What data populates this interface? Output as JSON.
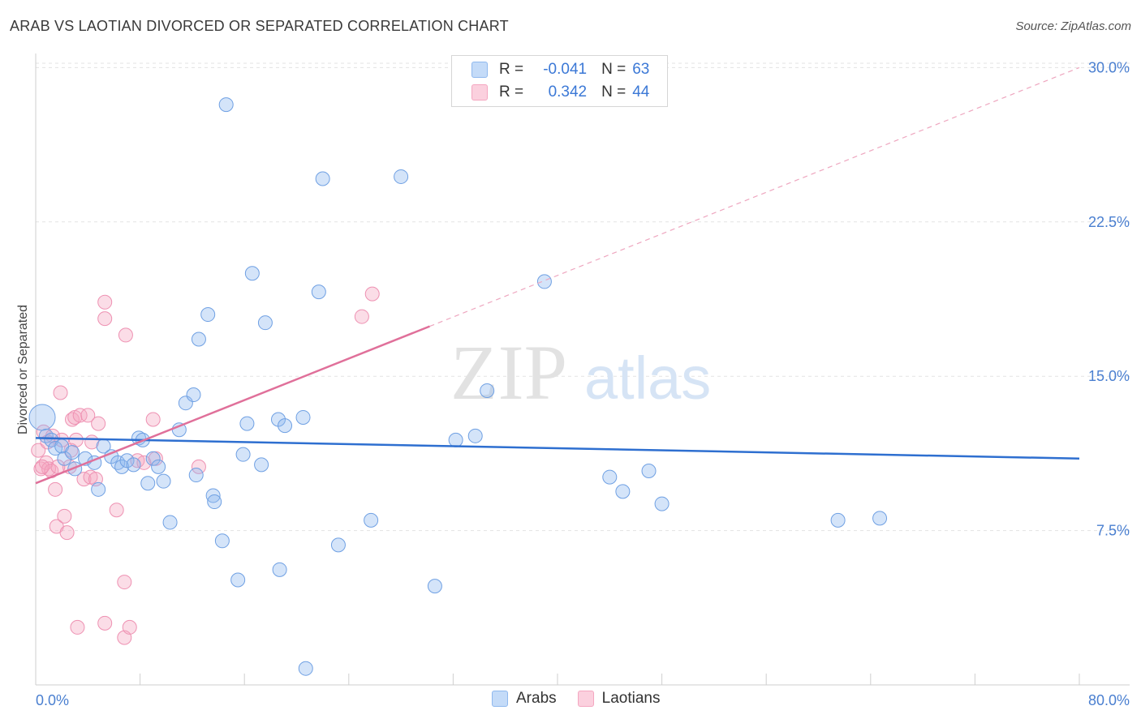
{
  "header": {
    "title": "ARAB VS LAOTIAN DIVORCED OR SEPARATED CORRELATION CHART",
    "source": "Source: ZipAtlas.com"
  },
  "watermark": {
    "zip": "ZIP",
    "atlas": "atlas"
  },
  "legend": {
    "r_label": "R =",
    "n_label": "N =",
    "rows": [
      {
        "r": "-0.041",
        "n": "63",
        "color": "#8fb8ee"
      },
      {
        "r": "0.342",
        "n": "44",
        "color": "#f4a6c0"
      }
    ]
  },
  "bottom_legend": [
    "Arabs",
    "Laotians"
  ],
  "chart_data": {
    "type": "scatter",
    "title": "ARAB VS LAOTIAN DIVORCED OR SEPARATED CORRELATION CHART",
    "xlabel": "",
    "ylabel": "Divorced or Separated",
    "xlim": [
      0,
      80
    ],
    "ylim": [
      0,
      31
    ],
    "x_tick_labels": [
      {
        "value": 0,
        "label": "0.0%"
      },
      {
        "value": 80,
        "label": "80.0%"
      }
    ],
    "y_tick_labels": [
      {
        "value": 7.5,
        "label": "7.5%"
      },
      {
        "value": 15.0,
        "label": "15.0%"
      },
      {
        "value": 22.5,
        "label": "22.5%"
      },
      {
        "value": 30.0,
        "label": "30.0%"
      }
    ],
    "colors": {
      "arabs": "#8fb8ee",
      "arabs_line": "#2e6fd0",
      "laotians": "#f4a6c0",
      "laotians_line": "#e0709a"
    },
    "series": [
      {
        "name": "Arabs",
        "trend": {
          "x0": 0,
          "y0": 12.0,
          "x1": 80,
          "y1": 11.0,
          "solid_to": 80
        },
        "points": [
          [
            0.5,
            13.0,
            3
          ],
          [
            0.8,
            12.1,
            1
          ],
          [
            1.2,
            11.9,
            1
          ],
          [
            1.5,
            11.5,
            1
          ],
          [
            2.0,
            11.6,
            1
          ],
          [
            2.2,
            11.0,
            1
          ],
          [
            2.8,
            11.3,
            1
          ],
          [
            3.0,
            10.5,
            1
          ],
          [
            3.8,
            11.0,
            1
          ],
          [
            4.5,
            10.8,
            1
          ],
          [
            4.8,
            9.5,
            1
          ],
          [
            5.2,
            11.6,
            1
          ],
          [
            5.8,
            11.1,
            1
          ],
          [
            6.3,
            10.8,
            1
          ],
          [
            6.6,
            10.6,
            1
          ],
          [
            7.0,
            10.9,
            1
          ],
          [
            7.5,
            10.7,
            1
          ],
          [
            7.9,
            12.0,
            1
          ],
          [
            8.2,
            11.9,
            1
          ],
          [
            8.6,
            9.8,
            1
          ],
          [
            9.0,
            11.0,
            1
          ],
          [
            9.4,
            10.6,
            1
          ],
          [
            9.8,
            9.9,
            1
          ],
          [
            10.3,
            7.9,
            1
          ],
          [
            11.0,
            12.4,
            1
          ],
          [
            11.5,
            13.7,
            1
          ],
          [
            12.1,
            14.1,
            1
          ],
          [
            12.3,
            10.2,
            1
          ],
          [
            12.5,
            16.8,
            1
          ],
          [
            13.2,
            18.0,
            1
          ],
          [
            13.6,
            9.2,
            1
          ],
          [
            13.7,
            8.9,
            1
          ],
          [
            14.3,
            7.0,
            1
          ],
          [
            14.6,
            28.2,
            1
          ],
          [
            15.5,
            5.1,
            1
          ],
          [
            15.9,
            11.2,
            1
          ],
          [
            16.2,
            12.7,
            1
          ],
          [
            16.6,
            20.0,
            1
          ],
          [
            17.3,
            10.7,
            1
          ],
          [
            17.6,
            17.6,
            1
          ],
          [
            18.6,
            12.9,
            1
          ],
          [
            18.7,
            5.6,
            1
          ],
          [
            19.1,
            12.6,
            1
          ],
          [
            20.5,
            13.0,
            1
          ],
          [
            20.7,
            0.8,
            1
          ],
          [
            21.7,
            19.1,
            1
          ],
          [
            22.0,
            24.6,
            1
          ],
          [
            23.2,
            6.8,
            1
          ],
          [
            25.7,
            8.0,
            1
          ],
          [
            28.0,
            24.7,
            1
          ],
          [
            30.6,
            4.8,
            1
          ],
          [
            32.2,
            11.9,
            1
          ],
          [
            33.7,
            12.1,
            1
          ],
          [
            34.6,
            14.3,
            1
          ],
          [
            39.0,
            19.6,
            1
          ],
          [
            44.0,
            10.1,
            1
          ],
          [
            45.0,
            9.4,
            1
          ],
          [
            47.0,
            10.4,
            1
          ],
          [
            48.0,
            8.8,
            1
          ],
          [
            61.5,
            8.0,
            1
          ],
          [
            64.7,
            8.1,
            1
          ]
        ]
      },
      {
        "name": "Laotians",
        "trend": {
          "x0": 0,
          "y0": 9.8,
          "x1": 80,
          "y1": 30.0,
          "solid_to": 30.2
        },
        "points": [
          [
            0.2,
            11.4,
            1
          ],
          [
            0.4,
            10.5,
            1
          ],
          [
            0.6,
            12.3,
            1
          ],
          [
            0.8,
            10.8,
            1
          ],
          [
            1.0,
            10.5,
            1
          ],
          [
            1.2,
            10.4,
            1
          ],
          [
            1.3,
            12.1,
            1
          ],
          [
            1.5,
            9.5,
            1
          ],
          [
            1.6,
            7.7,
            1
          ],
          [
            1.9,
            14.2,
            1
          ],
          [
            2.0,
            11.9,
            1
          ],
          [
            2.2,
            8.2,
            1
          ],
          [
            2.4,
            7.4,
            1
          ],
          [
            2.6,
            10.6,
            1
          ],
          [
            2.7,
            11.4,
            1
          ],
          [
            2.8,
            12.9,
            1
          ],
          [
            3.0,
            13.0,
            1
          ],
          [
            3.1,
            11.9,
            1
          ],
          [
            3.2,
            2.8,
            1
          ],
          [
            3.4,
            13.1,
            1
          ],
          [
            3.7,
            10.0,
            1
          ],
          [
            4.0,
            13.1,
            1
          ],
          [
            4.2,
            10.1,
            1
          ],
          [
            4.3,
            11.8,
            1
          ],
          [
            4.6,
            10.0,
            1
          ],
          [
            4.8,
            12.7,
            1
          ],
          [
            5.3,
            3.0,
            1
          ],
          [
            5.3,
            18.6,
            1
          ],
          [
            5.3,
            17.8,
            1
          ],
          [
            6.2,
            8.5,
            1
          ],
          [
            6.8,
            5.0,
            1
          ],
          [
            6.9,
            17.0,
            1
          ],
          [
            6.8,
            2.3,
            1
          ],
          [
            7.2,
            2.8,
            1
          ],
          [
            7.8,
            10.9,
            1
          ],
          [
            8.3,
            10.8,
            1
          ],
          [
            9.0,
            12.9,
            1
          ],
          [
            9.2,
            11.0,
            1
          ],
          [
            12.5,
            10.6,
            1
          ],
          [
            25.0,
            17.9,
            1
          ],
          [
            25.8,
            19.0,
            1
          ],
          [
            0.5,
            10.6,
            1
          ],
          [
            0.9,
            11.8,
            1
          ],
          [
            1.7,
            10.6,
            1
          ]
        ]
      }
    ]
  }
}
